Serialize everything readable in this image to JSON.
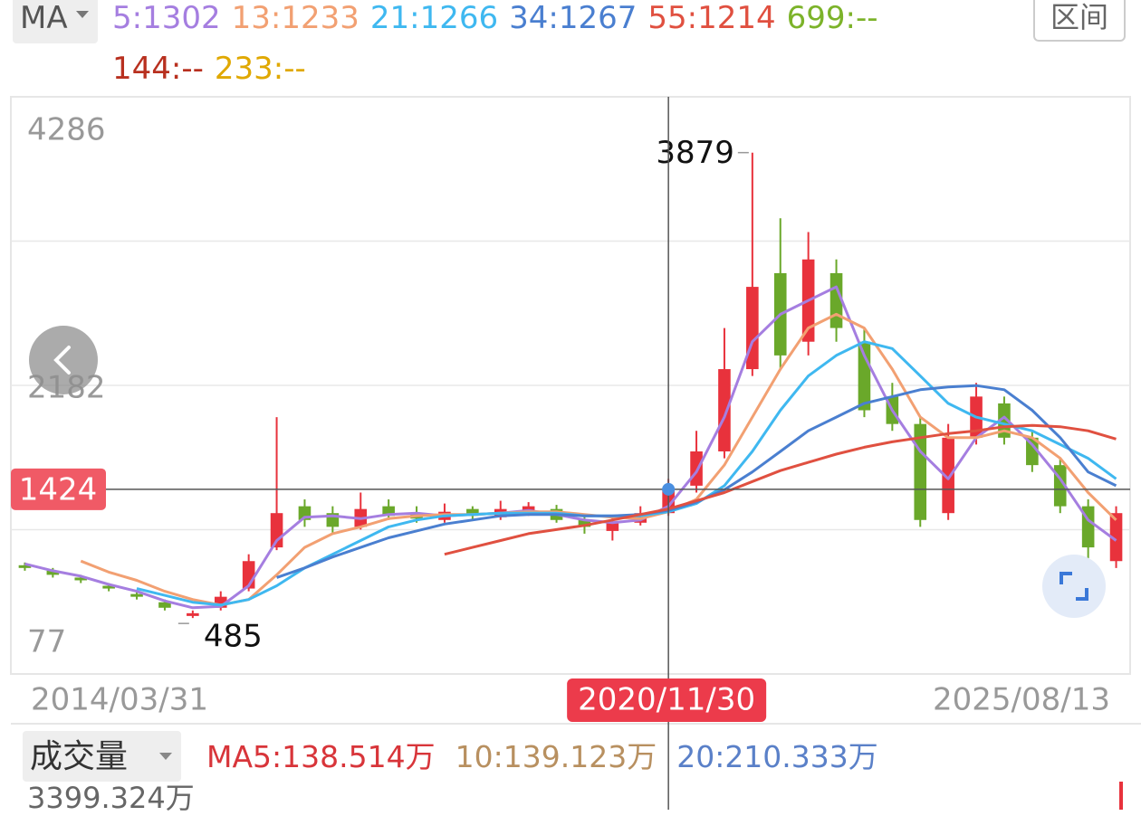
{
  "header": {
    "ma_button": "MA",
    "range_button": "区间",
    "extra_legend": [
      {
        "label": "699:--",
        "color": "#7cb32a"
      },
      {
        "label": "144:--",
        "color": "#b8301f"
      },
      {
        "label": "233:--",
        "color": "#e0a800"
      }
    ]
  },
  "chart_data": {
    "type": "candlestick",
    "categories": [
      null,
      null,
      null,
      null,
      null,
      null,
      null,
      null,
      null,
      null,
      null,
      null,
      null,
      null,
      null,
      null,
      null,
      null,
      null,
      null,
      null,
      null,
      null,
      null,
      null,
      null,
      null,
      null,
      null,
      null,
      null,
      null,
      null,
      null,
      null,
      null,
      null,
      null,
      null,
      null
    ],
    "open": [
      870,
      830,
      780,
      720,
      660,
      600,
      500,
      560,
      700,
      1000,
      1300,
      1250,
      1150,
      1300,
      1250,
      1200,
      1280,
      1220,
      1250,
      1280,
      1200,
      1120,
      1180,
      1250,
      1450,
      1700,
      2300,
      3000,
      2500,
      3000,
      2500,
      2100,
      1900,
      1250,
      1800,
      2050,
      1800,
      1600,
      1300,
      900
    ],
    "high": [
      890,
      850,
      800,
      740,
      680,
      620,
      540,
      680,
      950,
      1950,
      1350,
      1300,
      1400,
      1350,
      1300,
      1320,
      1300,
      1340,
      1330,
      1310,
      1230,
      1220,
      1300,
      1500,
      1850,
      2600,
      3879,
      3400,
      3300,
      3100,
      2600,
      2200,
      1950,
      1900,
      2200,
      2100,
      1850,
      1650,
      1350,
      1300
    ],
    "low": [
      830,
      780,
      740,
      680,
      620,
      540,
      485,
      540,
      680,
      980,
      1150,
      1100,
      1130,
      1200,
      1180,
      1180,
      1200,
      1200,
      1230,
      1180,
      1100,
      1050,
      1160,
      1230,
      1400,
      1650,
      2250,
      2300,
      2400,
      2500,
      1950,
      1850,
      1150,
      1200,
      1750,
      1750,
      1550,
      1250,
      920,
      850
    ],
    "close": [
      850,
      800,
      760,
      700,
      640,
      560,
      520,
      640,
      900,
      1250,
      1200,
      1150,
      1280,
      1230,
      1210,
      1260,
      1230,
      1280,
      1300,
      1200,
      1150,
      1180,
      1250,
      1424,
      1700,
      2300,
      2900,
      2400,
      3100,
      2600,
      2000,
      1900,
      1200,
      1800,
      2100,
      1800,
      1600,
      1300,
      1000,
      1250
    ],
    "up_color": "#e8323c",
    "down_color": "#6aa82a",
    "series": [
      {
        "name": "5:1302",
        "color": "#a57ee0",
        "values": [
          880,
          830,
          790,
          730,
          680,
          610,
          560,
          570,
          720,
          1050,
          1220,
          1230,
          1210,
          1240,
          1250,
          1230,
          1240,
          1250,
          1270,
          1240,
          1200,
          1180,
          1200,
          1300,
          1550,
          1950,
          2500,
          2700,
          2800,
          2900,
          2400,
          2000,
          1700,
          1500,
          1800,
          1950,
          1750,
          1500,
          1200,
          1050
        ]
      },
      {
        "name": "13:1233",
        "color": "#f2a072",
        "values": [
          null,
          null,
          900,
          820,
          760,
          680,
          620,
          580,
          620,
          800,
          1000,
          1100,
          1150,
          1210,
          1230,
          1240,
          1240,
          1250,
          1260,
          1260,
          1240,
          1220,
          1210,
          1260,
          1350,
          1600,
          1950,
          2300,
          2600,
          2700,
          2600,
          2300,
          1950,
          1800,
          1800,
          1850,
          1800,
          1650,
          1400,
          1200
        ]
      },
      {
        "name": "21:1266",
        "color": "#3fb8f0",
        "values": [
          null,
          null,
          null,
          null,
          700,
          650,
          600,
          580,
          620,
          720,
          850,
          950,
          1050,
          1150,
          1200,
          1230,
          1240,
          1250,
          1250,
          1250,
          1230,
          1230,
          1230,
          1260,
          1320,
          1450,
          1700,
          2000,
          2250,
          2400,
          2500,
          2450,
          2250,
          2050,
          1950,
          1900,
          1850,
          1750,
          1650,
          1500
        ]
      },
      {
        "name": "34:1267",
        "color": "#4a7fd0",
        "values": [
          null,
          null,
          null,
          null,
          null,
          null,
          null,
          null,
          null,
          780,
          850,
          930,
          1000,
          1070,
          1120,
          1170,
          1200,
          1230,
          1240,
          1240,
          1230,
          1230,
          1240,
          1270,
          1330,
          1420,
          1550,
          1700,
          1850,
          1950,
          2050,
          2100,
          2150,
          2170,
          2180,
          2150,
          2000,
          1800,
          1550,
          1450
        ]
      },
      {
        "name": "55:1214",
        "color": "#e05040",
        "values": [
          null,
          null,
          null,
          null,
          null,
          null,
          null,
          null,
          null,
          null,
          null,
          null,
          null,
          null,
          null,
          950,
          1000,
          1050,
          1100,
          1130,
          1160,
          1200,
          1240,
          1280,
          1340,
          1400,
          1480,
          1560,
          1620,
          1680,
          1730,
          1770,
          1800,
          1830,
          1850,
          1880,
          1890,
          1880,
          1850,
          1790
        ]
      }
    ],
    "ylim": [
      77,
      4286
    ],
    "yticks": [
      4286,
      2182,
      77
    ],
    "grid": true,
    "max_label": 3879,
    "min_label": 485,
    "crosshair_price": 1424,
    "crosshair_date": "2020/11/30",
    "x_start_label": "2014/03/31",
    "x_end_label": "2025/08/13"
  },
  "volume": {
    "button": "成交量",
    "max_label": "3399.324万",
    "legend": [
      {
        "label": "MA5:138.514万",
        "color": "#d8353a"
      },
      {
        "label": "10:139.123万",
        "color": "#b89060"
      },
      {
        "label": "20:210.333万",
        "color": "#5a80c8"
      }
    ]
  }
}
